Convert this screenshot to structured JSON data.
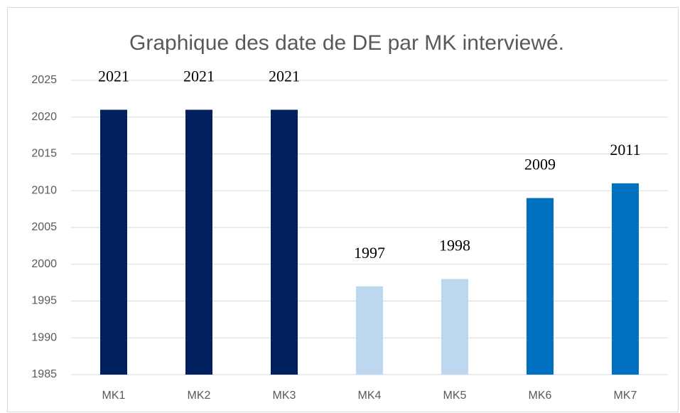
{
  "chart_data": {
    "type": "bar",
    "title": "Graphique des date de DE par MK interviewé.",
    "categories": [
      "MK1",
      "MK2",
      "MK3",
      "MK4",
      "MK5",
      "MK6",
      "MK7"
    ],
    "values": [
      2021,
      2021,
      2021,
      1997,
      1998,
      2009,
      2011
    ],
    "colors": [
      "#002060",
      "#002060",
      "#002060",
      "#bdd7ee",
      "#bdd7ee",
      "#0070c0",
      "#0070c0"
    ],
    "ylim": [
      1985,
      2025
    ],
    "yticks": [
      1985,
      1990,
      1995,
      2000,
      2005,
      2010,
      2015,
      2020,
      2025
    ],
    "grid": true
  }
}
